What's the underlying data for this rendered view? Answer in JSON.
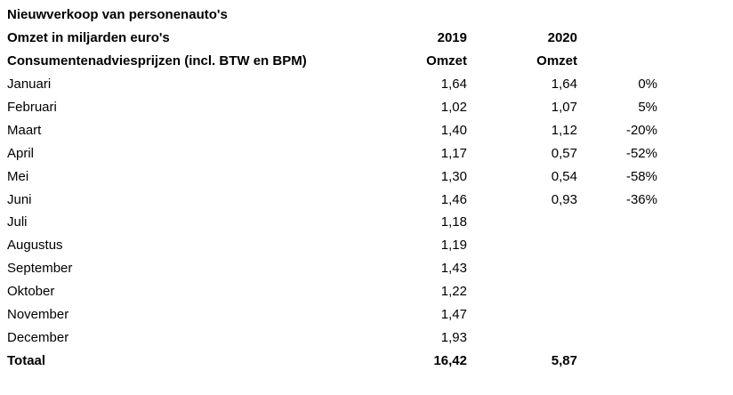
{
  "header": {
    "title": "Nieuwverkoop van personenauto's",
    "subtitle": "Omzet in miljarden euro's",
    "note": "Consumentenadviesprijzen (incl. BTW en BPM)",
    "col_2019_year": "2019",
    "col_2020_year": "2020",
    "col_2019_label": "Omzet",
    "col_2020_label": "Omzet"
  },
  "chart_data": {
    "type": "table",
    "title": "Nieuwverkoop van personenauto's",
    "subtitle": "Omzet in miljarden euro's",
    "note": "Consumentenadviesprijzen (incl. BTW en BPM)",
    "columns": [
      "",
      "2019 Omzet",
      "2020 Omzet",
      ""
    ],
    "rows": [
      {
        "month": "Januari",
        "v2019": "1,64",
        "v2020": "1,64",
        "change": "0%"
      },
      {
        "month": "Februari",
        "v2019": "1,02",
        "v2020": "1,07",
        "change": "5%"
      },
      {
        "month": "Maart",
        "v2019": "1,40",
        "v2020": "1,12",
        "change": "-20%"
      },
      {
        "month": "April",
        "v2019": "1,17",
        "v2020": "0,57",
        "change": "-52%"
      },
      {
        "month": "Mei",
        "v2019": "1,30",
        "v2020": "0,54",
        "change": "-58%"
      },
      {
        "month": "Juni",
        "v2019": "1,46",
        "v2020": "0,93",
        "change": "-36%"
      },
      {
        "month": "Juli",
        "v2019": "1,18",
        "v2020": "",
        "change": ""
      },
      {
        "month": "Augustus",
        "v2019": "1,19",
        "v2020": "",
        "change": ""
      },
      {
        "month": "September",
        "v2019": "1,43",
        "v2020": "",
        "change": ""
      },
      {
        "month": "Oktober",
        "v2019": "1,22",
        "v2020": "",
        "change": ""
      },
      {
        "month": "November",
        "v2019": "1,47",
        "v2020": "",
        "change": ""
      },
      {
        "month": "December",
        "v2019": "1,93",
        "v2020": "",
        "change": ""
      }
    ],
    "total": {
      "label": "Totaal",
      "v2019": "16,42",
      "v2020": "5,87",
      "change": ""
    }
  }
}
